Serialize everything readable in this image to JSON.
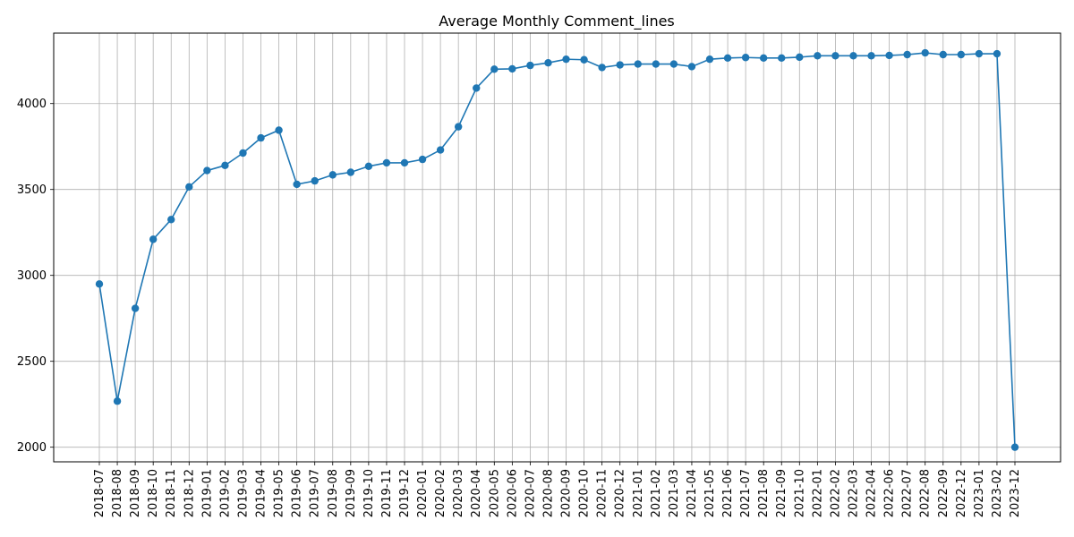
{
  "chart_data": {
    "type": "line",
    "title": "Average Monthly Comment_lines",
    "xlabel": "",
    "ylabel": "",
    "ylim": [
      1915,
      4410
    ],
    "yticks": [
      2000,
      2500,
      3000,
      3500,
      4000
    ],
    "grid": true,
    "legend": "none",
    "color": "#1f77b4",
    "x": [
      "2018-07",
      "2018-08",
      "2018-09",
      "2018-10",
      "2018-11",
      "2018-12",
      "2019-01",
      "2019-02",
      "2019-03",
      "2019-04",
      "2019-05",
      "2019-06",
      "2019-07",
      "2019-08",
      "2019-09",
      "2019-10",
      "2019-11",
      "2019-12",
      "2020-01",
      "2020-02",
      "2020-03",
      "2020-04",
      "2020-05",
      "2020-06",
      "2020-07",
      "2020-08",
      "2020-09",
      "2020-10",
      "2020-11",
      "2020-12",
      "2021-01",
      "2021-02",
      "2021-03",
      "2021-04",
      "2021-05",
      "2021-06",
      "2021-07",
      "2021-08",
      "2021-09",
      "2021-10",
      "2022-01",
      "2022-02",
      "2022-03",
      "2022-04",
      "2022-06",
      "2022-07",
      "2022-08",
      "2022-09",
      "2022-12",
      "2023-01",
      "2023-02",
      "2023-12"
    ],
    "values": [
      2950,
      2268,
      2808,
      3210,
      3325,
      3515,
      3610,
      3640,
      3712,
      3800,
      3845,
      3530,
      3550,
      3585,
      3600,
      3635,
      3655,
      3655,
      3675,
      3730,
      3865,
      4090,
      4200,
      4202,
      4222,
      4237,
      4258,
      4255,
      4210,
      4225,
      4230,
      4230,
      4230,
      4215,
      4258,
      4265,
      4268,
      4265,
      4265,
      4270,
      4278,
      4278,
      4278,
      4278,
      4280,
      4285,
      4295,
      4285,
      4285,
      4290,
      4290,
      2000
    ]
  }
}
